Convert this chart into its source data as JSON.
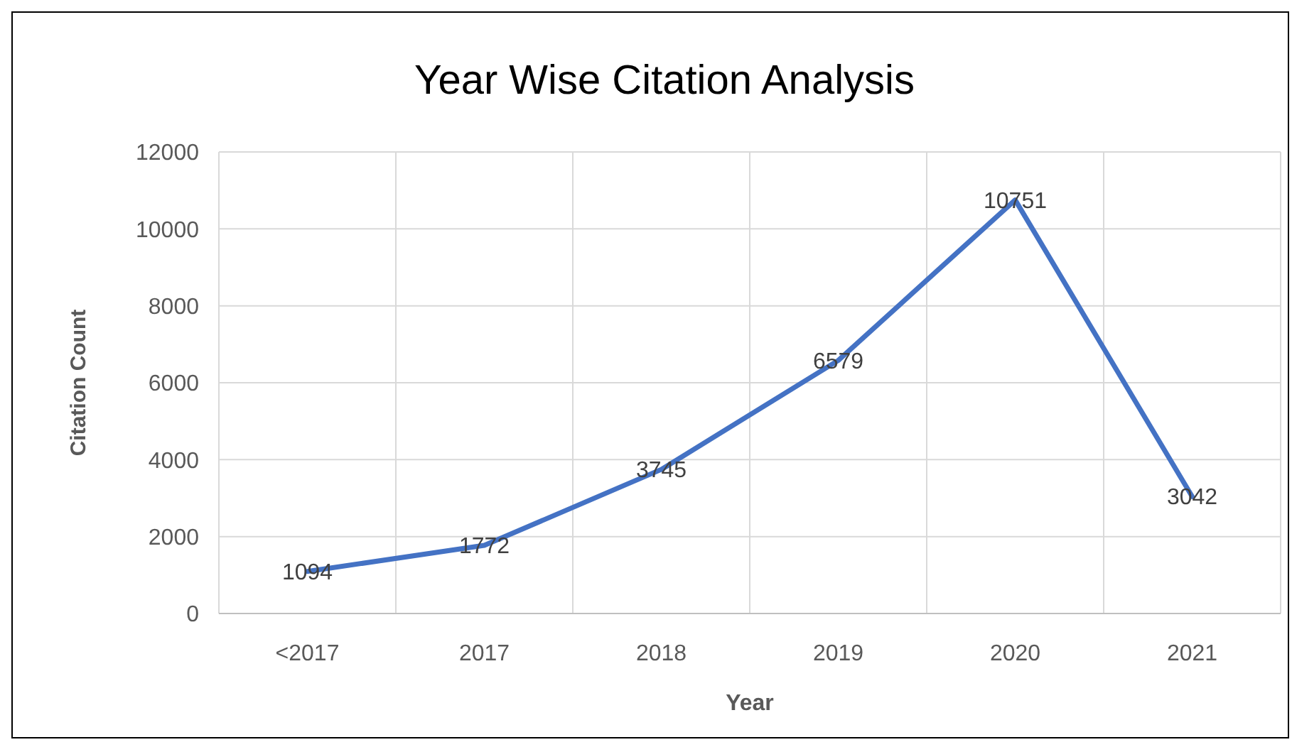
{
  "chart_data": {
    "type": "line",
    "title": "Year Wise Citation Analysis",
    "xlabel": "Year",
    "ylabel": "Citation Count",
    "categories": [
      "<2017",
      "2017",
      "2018",
      "2019",
      "2020",
      "2021"
    ],
    "series": [
      {
        "color": "#4472c4",
        "values": [
          1094,
          1772,
          3745,
          6579,
          10751,
          3042
        ]
      }
    ],
    "ylim": [
      0,
      12000
    ],
    "yticks": [
      0,
      2000,
      4000,
      6000,
      8000,
      10000,
      12000
    ],
    "grid": true,
    "data_labels": true,
    "marker": "none",
    "line_style": "solid"
  }
}
